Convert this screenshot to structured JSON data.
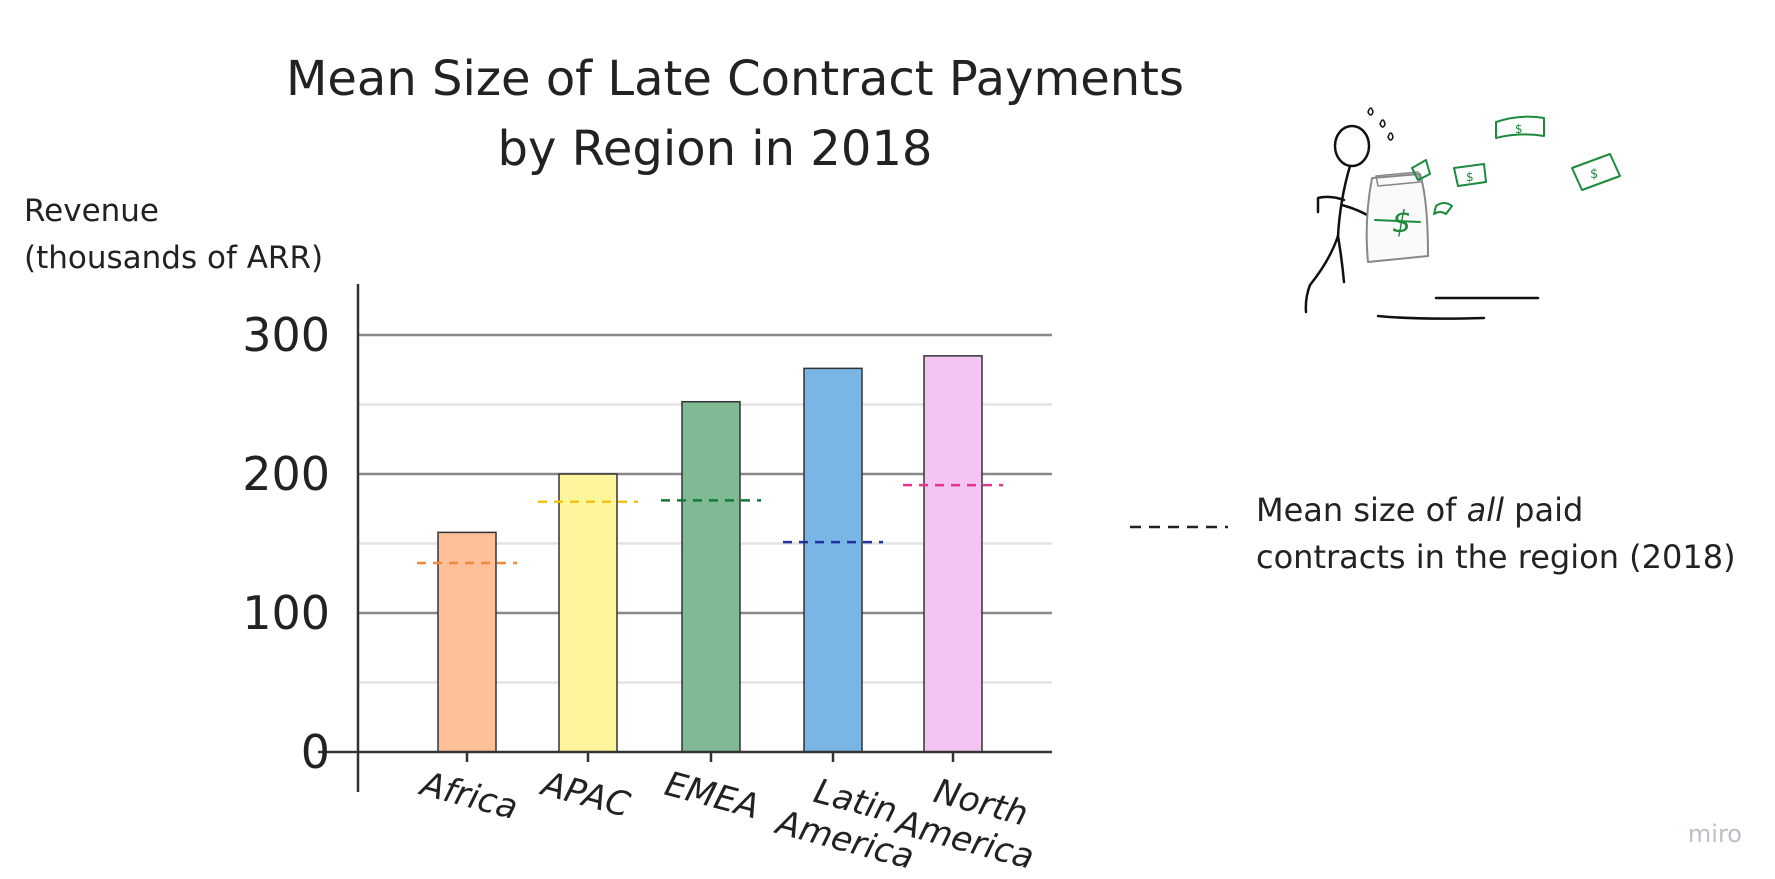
{
  "chart_data": {
    "type": "bar",
    "title": "Mean Size of Late Contract Payments by Region in 2018",
    "title_lines": [
      "Mean Size of Late Contract Payments",
      "by Region in 2018"
    ],
    "ylabel_lines": [
      "Revenue",
      "(thousands of ARR)"
    ],
    "xlabel": "",
    "ylim": [
      0,
      300
    ],
    "yticks": [
      0,
      100,
      200,
      300
    ],
    "categories": [
      {
        "label_lines": [
          "Africa"
        ],
        "value": 158,
        "mean_all": 136,
        "color": "#ffbf99",
        "mean_color": "#f5883a"
      },
      {
        "label_lines": [
          "APAC"
        ],
        "value": 200,
        "mean_all": 180,
        "color": "#fff59c",
        "mean_color": "#f0c419"
      },
      {
        "label_lines": [
          "EMEA"
        ],
        "value": 252,
        "mean_all": 181,
        "color": "#7fba94",
        "mean_color": "#137a35"
      },
      {
        "label_lines": [
          "Latin",
          "America"
        ],
        "value": 276,
        "mean_all": 151,
        "color": "#7ab6e5",
        "mean_color": "#1f2fa8"
      },
      {
        "label_lines": [
          "North",
          "America"
        ],
        "value": 285,
        "mean_all": 192,
        "color": "#f4c4f2",
        "mean_color": "#e3338f"
      }
    ],
    "legend": {
      "label_before": "Mean size of ",
      "label_emphasis": "all",
      "label_after": " paid",
      "label_line2": "contracts in the region (2018)",
      "line_style": "dashed",
      "color": "#222222"
    },
    "grid": true,
    "legend_position": "right"
  },
  "watermark": "miro",
  "illustration_icon": "stick-figure-with-cash-machine-icon"
}
